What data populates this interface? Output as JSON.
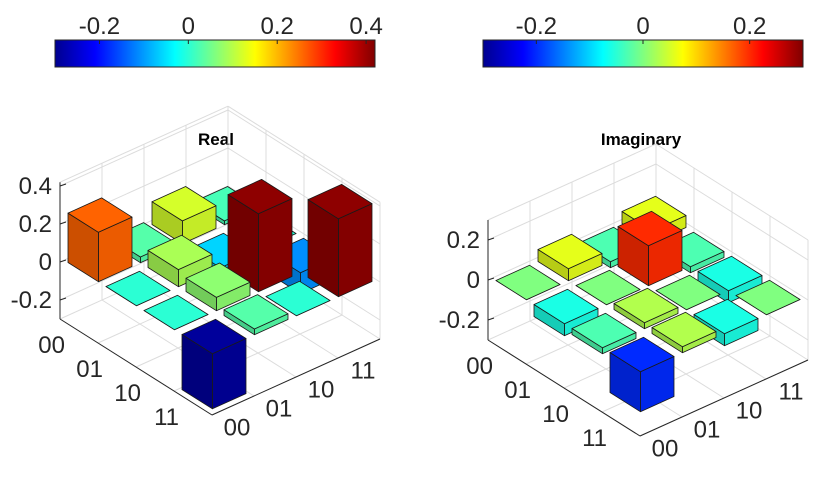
{
  "chart_data": [
    {
      "type": "bar3d",
      "title": "Real",
      "row_labels": [
        "00",
        "01",
        "10",
        "11"
      ],
      "col_labels": [
        "00",
        "01",
        "10",
        "11"
      ],
      "values": [
        [
          0.26,
          0.03,
          0.12,
          0.02
        ],
        [
          0.0,
          0.09,
          -0.06,
          0.0
        ],
        [
          0.0,
          0.07,
          0.41,
          -0.11
        ],
        [
          -0.29,
          0.03,
          0.0,
          0.41
        ]
      ],
      "zlim": [
        -0.3,
        0.42
      ],
      "zticks": [
        0.4,
        0.2,
        0,
        -0.2
      ],
      "ztick_labels": [
        "0.4",
        "0.2",
        "0",
        "-0.2"
      ],
      "colorbar": {
        "range": [
          -0.3,
          0.42
        ],
        "ticks": [
          -0.2,
          0,
          0.2,
          0.4
        ],
        "tick_labels": [
          "-0.2",
          "0",
          "0.2",
          "0.4"
        ]
      }
    },
    {
      "type": "bar3d",
      "title": "Imaginary",
      "row_labels": [
        "00",
        "01",
        "10",
        "11"
      ],
      "col_labels": [
        "00",
        "01",
        "10",
        "11"
      ],
      "values": [
        [
          0.0,
          0.06,
          -0.03,
          0.06
        ],
        [
          -0.06,
          0.0,
          0.2,
          -0.03
        ],
        [
          -0.03,
          0.03,
          0.0,
          -0.06
        ],
        [
          -0.2,
          0.03,
          -0.06,
          0.0
        ]
      ],
      "zlim": [
        -0.3,
        0.3
      ],
      "zticks": [
        0.2,
        0,
        -0.2
      ],
      "ztick_labels": [
        "0.2",
        "0",
        "-0.2"
      ],
      "colorbar": {
        "range": [
          -0.3,
          0.3
        ],
        "ticks": [
          -0.2,
          0,
          0.2
        ],
        "tick_labels": [
          "-0.2",
          "0",
          "0.2"
        ]
      }
    }
  ]
}
